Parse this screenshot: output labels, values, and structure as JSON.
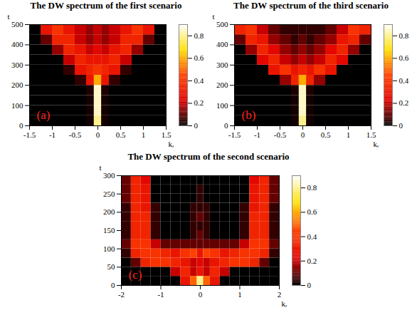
{
  "chart_data": [
    {
      "type": "heatmap",
      "title": "The DW spectrum of the first scenario",
      "annotation": "(a)",
      "x_label": "kᵣ",
      "y_label": "t",
      "xlim": [
        -1.5,
        1.5
      ],
      "xticks": [
        -1.5,
        -1,
        -0.5,
        0,
        0.5,
        1,
        1.5
      ],
      "ylim": [
        0,
        500
      ],
      "yticks": [
        0,
        100,
        200,
        300,
        400,
        500
      ],
      "x_edges": [
        -1.5,
        -1.25,
        -1,
        -0.75,
        -0.5,
        -0.25,
        -0.08,
        0.08,
        0.25,
        0.5,
        0.75,
        1,
        1.25,
        1.5
      ],
      "y_edges": [
        0,
        50,
        100,
        150,
        200,
        250,
        300,
        350,
        400,
        450,
        500
      ],
      "cells": [
        [
          0,
          0,
          0,
          0,
          0,
          0.02,
          0.8,
          0.02,
          0,
          0,
          0,
          0,
          0
        ],
        [
          0,
          0,
          0,
          0,
          0,
          0.02,
          0.85,
          0.02,
          0,
          0,
          0,
          0,
          0
        ],
        [
          0,
          0,
          0,
          0,
          0,
          0.02,
          0.85,
          0.02,
          0,
          0,
          0,
          0,
          0
        ],
        [
          0,
          0,
          0,
          0,
          0,
          0.03,
          0.85,
          0.03,
          0,
          0,
          0,
          0,
          0
        ],
        [
          0,
          0,
          0,
          0,
          0.05,
          0.3,
          0.6,
          0.3,
          0.05,
          0,
          0,
          0,
          0
        ],
        [
          0,
          0,
          0,
          0.05,
          0.3,
          0.35,
          0.4,
          0.35,
          0.3,
          0.05,
          0,
          0,
          0
        ],
        [
          0,
          0,
          0,
          0.2,
          0.35,
          0.3,
          0.3,
          0.3,
          0.35,
          0.2,
          0,
          0,
          0
        ],
        [
          0,
          0,
          0.15,
          0.35,
          0.3,
          0.2,
          0.25,
          0.2,
          0.3,
          0.35,
          0.15,
          0,
          0
        ],
        [
          0,
          0.1,
          0.35,
          0.35,
          0.2,
          0.15,
          0.2,
          0.15,
          0.2,
          0.35,
          0.35,
          0.1,
          0
        ],
        [
          0,
          0.3,
          0.4,
          0.3,
          0.2,
          0.15,
          0.2,
          0.15,
          0.2,
          0.3,
          0.4,
          0.3,
          0
        ]
      ],
      "colorbar_range": [
        0,
        0.9
      ],
      "colorbar_ticks": [
        0,
        0.2,
        0.4,
        0.6,
        0.8
      ]
    },
    {
      "type": "heatmap",
      "title": "The DW spectrum of the third scenario",
      "annotation": "(b)",
      "x_label": "kᵣ",
      "y_label": "t",
      "xlim": [
        -1.5,
        1.5
      ],
      "xticks": [
        -1.5,
        -1,
        -0.5,
        0,
        0.5,
        1,
        1.5
      ],
      "ylim": [
        0,
        500
      ],
      "yticks": [
        0,
        100,
        200,
        300,
        400,
        500
      ],
      "x_edges": [
        -1.5,
        -1.25,
        -1,
        -0.75,
        -0.5,
        -0.25,
        -0.08,
        0.08,
        0.25,
        0.5,
        0.75,
        1,
        1.25,
        1.5
      ],
      "y_edges": [
        0,
        50,
        100,
        150,
        200,
        250,
        300,
        350,
        400,
        450,
        500
      ],
      "cells": [
        [
          0,
          0,
          0,
          0,
          0,
          0.02,
          0.8,
          0.02,
          0,
          0,
          0,
          0,
          0
        ],
        [
          0,
          0,
          0,
          0,
          0,
          0.02,
          0.85,
          0.02,
          0,
          0,
          0,
          0,
          0
        ],
        [
          0,
          0,
          0,
          0,
          0,
          0.02,
          0.85,
          0.02,
          0,
          0,
          0,
          0,
          0
        ],
        [
          0,
          0,
          0,
          0,
          0,
          0.03,
          0.85,
          0.03,
          0,
          0,
          0,
          0,
          0
        ],
        [
          0,
          0,
          0,
          0,
          0.15,
          0.35,
          0.6,
          0.35,
          0.15,
          0,
          0,
          0,
          0
        ],
        [
          0,
          0,
          0,
          0.3,
          0.4,
          0.3,
          0.35,
          0.3,
          0.4,
          0.3,
          0,
          0,
          0
        ],
        [
          0,
          0,
          0.25,
          0.35,
          0.2,
          0.15,
          0.2,
          0.15,
          0.2,
          0.35,
          0.25,
          0,
          0
        ],
        [
          0,
          0.15,
          0.35,
          0.25,
          0.15,
          0.1,
          0.15,
          0.1,
          0.15,
          0.25,
          0.35,
          0.15,
          0
        ],
        [
          0.1,
          0.35,
          0.3,
          0.15,
          0.1,
          0.05,
          0.1,
          0.05,
          0.1,
          0.15,
          0.3,
          0.35,
          0.1
        ],
        [
          0.35,
          0.4,
          0.2,
          0.1,
          0.05,
          0.05,
          0.05,
          0.05,
          0.05,
          0.1,
          0.2,
          0.4,
          0.35
        ]
      ],
      "colorbar_range": [
        0,
        0.9
      ],
      "colorbar_ticks": [
        0,
        0.2,
        0.4,
        0.6,
        0.8
      ]
    },
    {
      "type": "heatmap",
      "title": "The DW spectrum of the second scenario",
      "annotation": "(c)",
      "x_label": "kᵣ",
      "y_label": "t",
      "xlim": [
        -2,
        2
      ],
      "xticks": [
        -2,
        -1,
        0,
        1,
        2
      ],
      "ylim": [
        0,
        300
      ],
      "yticks": [
        0,
        50,
        100,
        150,
        200,
        250,
        300
      ],
      "x_edges": [
        -2,
        -1.75,
        -1.5,
        -1.25,
        -1,
        -0.75,
        -0.5,
        -0.25,
        -0.08,
        0.08,
        0.25,
        0.5,
        0.75,
        1,
        1.25,
        1.5,
        1.75,
        2
      ],
      "y_edges": [
        0,
        25,
        50,
        75,
        100,
        125,
        150,
        175,
        200,
        225,
        250,
        275,
        300
      ],
      "cells": [
        [
          0,
          0,
          0,
          0,
          0,
          0,
          0.3,
          0.5,
          0.8,
          0.5,
          0.3,
          0,
          0,
          0,
          0,
          0,
          0
        ],
        [
          0,
          0,
          0,
          0,
          0,
          0.2,
          0.35,
          0.2,
          0.3,
          0.2,
          0.35,
          0.2,
          0,
          0,
          0,
          0,
          0
        ],
        [
          0,
          0.1,
          0.35,
          0.4,
          0.4,
          0.35,
          0.3,
          0.2,
          0.25,
          0.2,
          0.3,
          0.35,
          0.4,
          0.4,
          0.35,
          0.1,
          0
        ],
        [
          0.05,
          0.35,
          0.4,
          0.4,
          0.35,
          0.3,
          0.4,
          0.45,
          0.3,
          0.45,
          0.4,
          0.3,
          0.35,
          0.4,
          0.4,
          0.35,
          0.05
        ],
        [
          0.1,
          0.4,
          0.4,
          0.2,
          0.1,
          0.1,
          0.1,
          0.1,
          0.1,
          0.1,
          0.1,
          0.1,
          0.1,
          0.2,
          0.4,
          0.4,
          0.1
        ],
        [
          0.05,
          0.35,
          0.35,
          0.05,
          0,
          0,
          0,
          0.05,
          0.1,
          0.05,
          0,
          0,
          0,
          0.05,
          0.35,
          0.35,
          0.05
        ],
        [
          0.05,
          0.35,
          0.35,
          0.05,
          0,
          0,
          0,
          0.05,
          0.05,
          0.05,
          0,
          0,
          0,
          0.05,
          0.35,
          0.35,
          0.05
        ],
        [
          0.05,
          0.35,
          0.35,
          0.05,
          0,
          0,
          0,
          0.05,
          0.1,
          0.05,
          0,
          0,
          0,
          0.05,
          0.35,
          0.35,
          0.05
        ],
        [
          0.05,
          0.35,
          0.3,
          0.05,
          0,
          0,
          0,
          0.05,
          0.05,
          0.05,
          0,
          0,
          0,
          0.05,
          0.3,
          0.35,
          0.05
        ],
        [
          0.1,
          0.35,
          0.3,
          0,
          0,
          0,
          0,
          0,
          0.05,
          0,
          0,
          0,
          0,
          0,
          0.3,
          0.35,
          0.1
        ],
        [
          0.1,
          0.35,
          0.3,
          0,
          0,
          0,
          0,
          0,
          0.05,
          0,
          0,
          0,
          0,
          0,
          0.3,
          0.35,
          0.1
        ],
        [
          0.1,
          0.35,
          0.25,
          0,
          0,
          0,
          0,
          0,
          0,
          0,
          0,
          0,
          0,
          0,
          0.25,
          0.35,
          0.1
        ]
      ],
      "colorbar_range": [
        0,
        0.9
      ],
      "colorbar_ticks": [
        0,
        0.2,
        0.4,
        0.6,
        0.8
      ]
    }
  ]
}
